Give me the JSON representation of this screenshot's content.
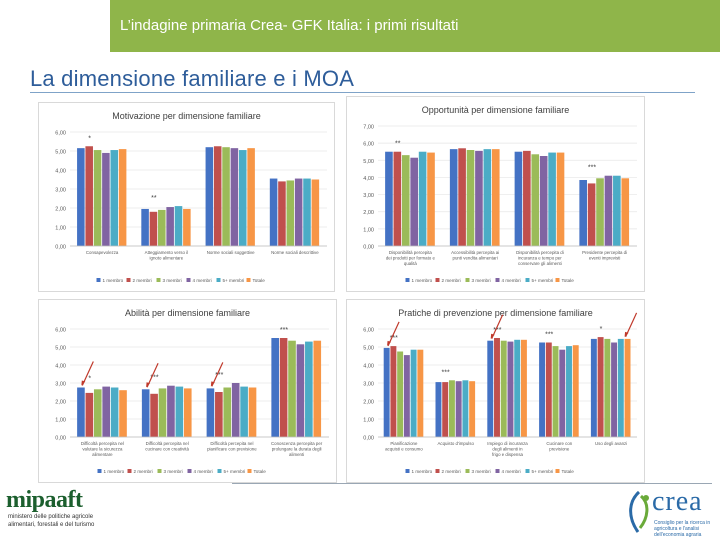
{
  "header": {
    "banner_text": "L’indagine primaria Crea- GFK Italia: i primi risultati"
  },
  "slide": {
    "title": "La dimensione familiare e i MOA"
  },
  "colors": {
    "banner": "#8fb54a",
    "title": "#2e5d9a",
    "arrow": "#c0392b",
    "series": [
      "#4472c4",
      "#c0504d",
      "#9bbb59",
      "#8064a2",
      "#4bacc6",
      "#f79646"
    ]
  },
  "legend_labels": [
    "1 membro",
    "2 membri",
    "3 membri",
    "4 membri",
    "5+ membri",
    "Totale"
  ],
  "chart_data": [
    {
      "type": "bar",
      "title": "Motivazione per dimensione familiare",
      "legend_position": "bottom",
      "ylim": [
        0,
        6
      ],
      "yticks": [
        "0,00",
        "1,00",
        "2,00",
        "3,00",
        "4,00",
        "5,00",
        "6,00"
      ],
      "categories": [
        "Consapevolezza",
        "Atteggiamento verso il ignoto alimentare",
        "Norme sociali soggettive",
        "Norme sociali descrittive"
      ],
      "significance": [
        "*",
        "**",
        "",
        ""
      ],
      "series": [
        {
          "name": "1 membro",
          "values": [
            5.15,
            1.95,
            5.2,
            3.55
          ]
        },
        {
          "name": "2 membri",
          "values": [
            5.25,
            1.8,
            5.25,
            3.4
          ]
        },
        {
          "name": "3 membri",
          "values": [
            5.05,
            1.9,
            5.2,
            3.45
          ]
        },
        {
          "name": "4 membri",
          "values": [
            4.9,
            2.05,
            5.15,
            3.55
          ]
        },
        {
          "name": "5+ membri",
          "values": [
            5.05,
            2.1,
            5.05,
            3.55
          ]
        },
        {
          "name": "Totale",
          "values": [
            5.1,
            1.95,
            5.15,
            3.5
          ]
        }
      ]
    },
    {
      "type": "bar",
      "title": "Opportunità per dimensione familiare",
      "legend_position": "bottom",
      "ylim": [
        0,
        7
      ],
      "yticks": [
        "0,00",
        "1,00",
        "2,00",
        "3,00",
        "4,00",
        "5,00",
        "6,00",
        "7,00"
      ],
      "categories": [
        "Disponibilità percepita dei prodotti per formato e qualità",
        "Accessibilità percepita ai punti vendita alimentari",
        "Disponibilità percepita di incuranza e tempo per conservare gli alimenti",
        "Presidente percepita di eventi imprevisti"
      ],
      "significance": [
        "**",
        "",
        "",
        "***"
      ],
      "series": [
        {
          "name": "1 membro",
          "values": [
            5.5,
            5.65,
            5.5,
            3.85
          ]
        },
        {
          "name": "2 membri",
          "values": [
            5.5,
            5.7,
            5.55,
            3.65
          ]
        },
        {
          "name": "3 membri",
          "values": [
            5.3,
            5.6,
            5.35,
            3.95
          ]
        },
        {
          "name": "4 membri",
          "values": [
            5.15,
            5.55,
            5.25,
            4.1
          ]
        },
        {
          "name": "5+ membri",
          "values": [
            5.5,
            5.65,
            5.45,
            4.1
          ]
        },
        {
          "name": "Totale",
          "values": [
            5.45,
            5.65,
            5.45,
            3.95
          ]
        }
      ]
    },
    {
      "type": "bar",
      "title": "Abilità per dimensione familiare",
      "legend_position": "bottom",
      "ylim": [
        0,
        6
      ],
      "yticks": [
        "0,00",
        "1,00",
        "2,00",
        "3,00",
        "4,00",
        "5,00",
        "6,00"
      ],
      "categories": [
        "Difficoltà percepita nel valutare la sicurezza alimentare",
        "Difficoltà percepita nel cucinare con creatività",
        "Difficoltà percepita nel pianificare con previsione",
        "Conoscenza percepita per prolungare la durata degli alimenti"
      ],
      "significance": [
        "*",
        "***",
        "***",
        "***"
      ],
      "series": [
        {
          "name": "1 membro",
          "values": [
            2.75,
            2.65,
            2.7,
            5.5
          ]
        },
        {
          "name": "2 membri",
          "values": [
            2.45,
            2.4,
            2.5,
            5.5
          ]
        },
        {
          "name": "3 membri",
          "values": [
            2.65,
            2.7,
            2.75,
            5.35
          ]
        },
        {
          "name": "4 membri",
          "values": [
            2.8,
            2.85,
            3.0,
            5.15
          ]
        },
        {
          "name": "5+ membri",
          "values": [
            2.75,
            2.8,
            2.8,
            5.3
          ]
        },
        {
          "name": "Totale",
          "values": [
            2.6,
            2.7,
            2.75,
            5.35
          ]
        }
      ]
    },
    {
      "type": "bar",
      "title": "Pratiche di prevenzione per dimensione familiare",
      "legend_position": "bottom",
      "ylim": [
        0,
        6
      ],
      "yticks": [
        "0,00",
        "1,00",
        "2,00",
        "3,00",
        "4,00",
        "5,00",
        "6,00"
      ],
      "categories": [
        "Pianificazione acquisti e consumo",
        "Acquisto d'impulso",
        "Impiego di incuranza degli alimenti in frigo e dispensa",
        "Cucinare con previsione",
        "Uso degli avanzi"
      ],
      "significance": [
        "***",
        "***",
        "***",
        "***",
        "*"
      ],
      "series": [
        {
          "name": "1 membro",
          "values": [
            4.95,
            3.05,
            5.35,
            5.25,
            5.45
          ]
        },
        {
          "name": "2 membri",
          "values": [
            5.05,
            3.05,
            5.5,
            5.25,
            5.55
          ]
        },
        {
          "name": "3 membri",
          "values": [
            4.75,
            3.15,
            5.35,
            5.05,
            5.45
          ]
        },
        {
          "name": "4 membri",
          "values": [
            4.55,
            3.1,
            5.3,
            4.85,
            5.25
          ]
        },
        {
          "name": "5+ membri",
          "values": [
            4.85,
            3.15,
            5.4,
            5.05,
            5.45
          ]
        },
        {
          "name": "Totale",
          "values": [
            4.85,
            3.1,
            5.4,
            5.1,
            5.45
          ]
        }
      ]
    }
  ],
  "footer": {
    "left_brand": "mipaaft",
    "left_sub": [
      "ministero delle politiche agricole",
      "alimentari, forestali e del turismo"
    ],
    "right_brand": "crea",
    "right_sub": "Consiglio per la ricerca in agricoltura e l'analisi dell'economia agraria"
  }
}
